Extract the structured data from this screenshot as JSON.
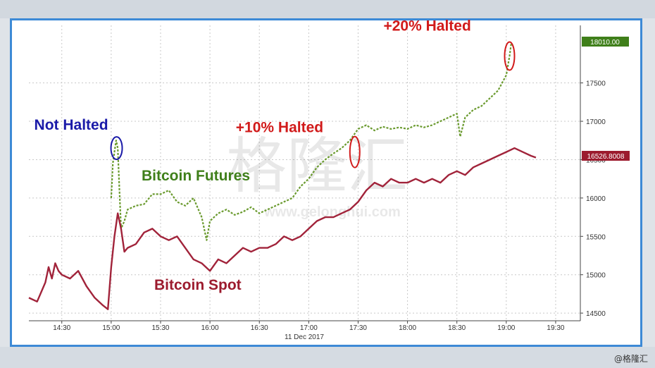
{
  "credit": "@格隆汇",
  "watermark": {
    "chars": "格隆汇",
    "url": "www.gelonghui.com"
  },
  "colors": {
    "futures": "#6a9a2e",
    "spot": "#a1233a",
    "not_halted": "#1a1aa8",
    "halted": "#d11a1a",
    "futures_tag": "#3f7f1a",
    "spot_tag": "#9c1b2e",
    "frame": "#3d8ad6"
  },
  "chart_data": {
    "type": "line",
    "title": "",
    "xlabel": "11 Dec 2017",
    "ylabel": "",
    "x_ticks": [
      "14:30",
      "15:00",
      "15:30",
      "16:00",
      "16:30",
      "17:00",
      "17:30",
      "18:00",
      "18:30",
      "19:00",
      "19:30"
    ],
    "y_ticks": [
      14500,
      15000,
      15500,
      16000,
      16500,
      17000,
      17500
    ],
    "ylim": [
      14400,
      18250
    ],
    "xlim": [
      "14:10",
      "19:45"
    ],
    "grid": true,
    "series": [
      {
        "name": "Bitcoin Futures",
        "style": "dashed",
        "last_value": "18010.00",
        "x": [
          "15:00",
          "15:01",
          "15:02",
          "15:03",
          "15:04",
          "15:05",
          "15:06",
          "15:08",
          "15:10",
          "15:15",
          "15:20",
          "15:25",
          "15:30",
          "15:35",
          "15:40",
          "15:45",
          "15:50",
          "15:55",
          "15:58",
          "16:00",
          "16:05",
          "16:10",
          "16:15",
          "16:20",
          "16:25",
          "16:30",
          "16:35",
          "16:40",
          "16:45",
          "16:50",
          "16:55",
          "17:00",
          "17:05",
          "17:10",
          "17:15",
          "17:20",
          "17:25",
          "17:30",
          "17:35",
          "17:40",
          "17:45",
          "17:50",
          "17:55",
          "18:00",
          "18:05",
          "18:10",
          "18:15",
          "18:20",
          "18:25",
          "18:30",
          "18:32",
          "18:35",
          "18:40",
          "18:45",
          "18:50",
          "18:55",
          "19:00",
          "19:02",
          "19:03"
        ],
        "y": [
          16000,
          16450,
          16600,
          16750,
          16650,
          16100,
          15600,
          15700,
          15850,
          15900,
          15920,
          16050,
          16050,
          16100,
          15950,
          15900,
          16000,
          15750,
          15450,
          15700,
          15800,
          15850,
          15780,
          15820,
          15880,
          15800,
          15850,
          15900,
          15950,
          16000,
          16150,
          16250,
          16400,
          16500,
          16580,
          16650,
          16750,
          16900,
          16950,
          16880,
          16930,
          16900,
          16920,
          16900,
          16950,
          16920,
          16950,
          17000,
          17050,
          17100,
          16800,
          17050,
          17150,
          17200,
          17300,
          17400,
          17600,
          17850,
          18010
        ]
      },
      {
        "name": "Bitcoin Spot",
        "style": "solid",
        "last_value": "16526.8008",
        "x": [
          "14:10",
          "14:15",
          "14:20",
          "14:22",
          "14:24",
          "14:26",
          "14:28",
          "14:30",
          "14:35",
          "14:40",
          "14:45",
          "14:50",
          "14:55",
          "14:58",
          "15:00",
          "15:02",
          "15:04",
          "15:06",
          "15:08",
          "15:10",
          "15:15",
          "15:20",
          "15:25",
          "15:30",
          "15:35",
          "15:40",
          "15:45",
          "15:50",
          "15:55",
          "16:00",
          "16:05",
          "16:10",
          "16:15",
          "16:20",
          "16:25",
          "16:30",
          "16:35",
          "16:40",
          "16:45",
          "16:50",
          "16:55",
          "17:00",
          "17:05",
          "17:10",
          "17:15",
          "17:20",
          "17:25",
          "17:30",
          "17:35",
          "17:40",
          "17:45",
          "17:50",
          "17:55",
          "18:00",
          "18:05",
          "18:10",
          "18:15",
          "18:20",
          "18:25",
          "18:30",
          "18:35",
          "18:40",
          "18:45",
          "18:50",
          "18:55",
          "19:00",
          "19:05",
          "19:10",
          "19:15",
          "19:18"
        ],
        "y": [
          14700,
          14650,
          14900,
          15100,
          14950,
          15150,
          15050,
          15000,
          14950,
          15050,
          14850,
          14700,
          14600,
          14550,
          15100,
          15500,
          15800,
          15600,
          15300,
          15350,
          15400,
          15550,
          15600,
          15500,
          15450,
          15500,
          15350,
          15200,
          15150,
          15050,
          15200,
          15150,
          15250,
          15350,
          15300,
          15350,
          15350,
          15400,
          15500,
          15450,
          15500,
          15600,
          15700,
          15750,
          15750,
          15800,
          15850,
          15950,
          16100,
          16200,
          16150,
          16250,
          16200,
          16200,
          16250,
          16200,
          16250,
          16200,
          16300,
          16350,
          16300,
          16400,
          16450,
          16500,
          16550,
          16600,
          16650,
          16600,
          16550,
          16526.8
        ]
      }
    ],
    "annotations": [
      {
        "text": "Not Halted",
        "at_x": "15:02",
        "at_y": 16650,
        "color": "not_halted"
      },
      {
        "text": "+10% Halted",
        "at_x": "17:28",
        "at_y": 16600,
        "color": "halted"
      },
      {
        "text": "+20% Halted",
        "at_x": "19:02",
        "at_y": 17850,
        "color": "halted"
      }
    ],
    "series_labels": [
      {
        "text": "Bitcoin Futures",
        "color": "futures"
      },
      {
        "text": "Bitcoin Spot",
        "color": "spot"
      }
    ]
  }
}
